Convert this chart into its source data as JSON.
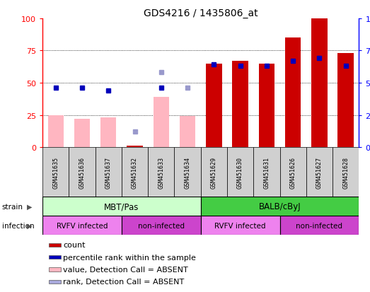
{
  "title": "GDS4216 / 1435806_at",
  "samples": [
    "GSM451635",
    "GSM451636",
    "GSM451637",
    "GSM451632",
    "GSM451633",
    "GSM451634",
    "GSM451629",
    "GSM451630",
    "GSM451631",
    "GSM451626",
    "GSM451627",
    "GSM451628"
  ],
  "red_bar_values": [
    0,
    0,
    0,
    1,
    0,
    0,
    65,
    67,
    65,
    85,
    100,
    73
  ],
  "blue_dot_values": [
    46,
    46,
    44,
    null,
    46,
    null,
    64,
    63,
    63,
    67,
    69,
    63
  ],
  "pink_bar_values": [
    25,
    22,
    23,
    1,
    39,
    24,
    null,
    null,
    null,
    null,
    null,
    null
  ],
  "lavender_dot_values": [
    null,
    null,
    null,
    12,
    58,
    46,
    null,
    null,
    null,
    null,
    null,
    null
  ],
  "ylim": [
    0,
    100
  ],
  "yticks": [
    0,
    25,
    50,
    75,
    100
  ],
  "red_color": "#CC0000",
  "pink_color": "#FFB6C1",
  "blue_color": "#0000BB",
  "lavender_color": "#9999CC",
  "strain_mbt_color": "#CCFFCC",
  "strain_balb_color": "#44CC44",
  "infection_colors": [
    "#EE82EE",
    "#CC44CC",
    "#EE82EE",
    "#CC44CC"
  ],
  "infection_labels": [
    "RVFV infected",
    "non-infected",
    "RVFV infected",
    "non-infected"
  ],
  "legend_items": [
    {
      "label": "count",
      "color": "#CC0000"
    },
    {
      "label": "percentile rank within the sample",
      "color": "#0000BB"
    },
    {
      "label": "value, Detection Call = ABSENT",
      "color": "#FFB6C1"
    },
    {
      "label": "rank, Detection Call = ABSENT",
      "color": "#AAAADD"
    }
  ]
}
